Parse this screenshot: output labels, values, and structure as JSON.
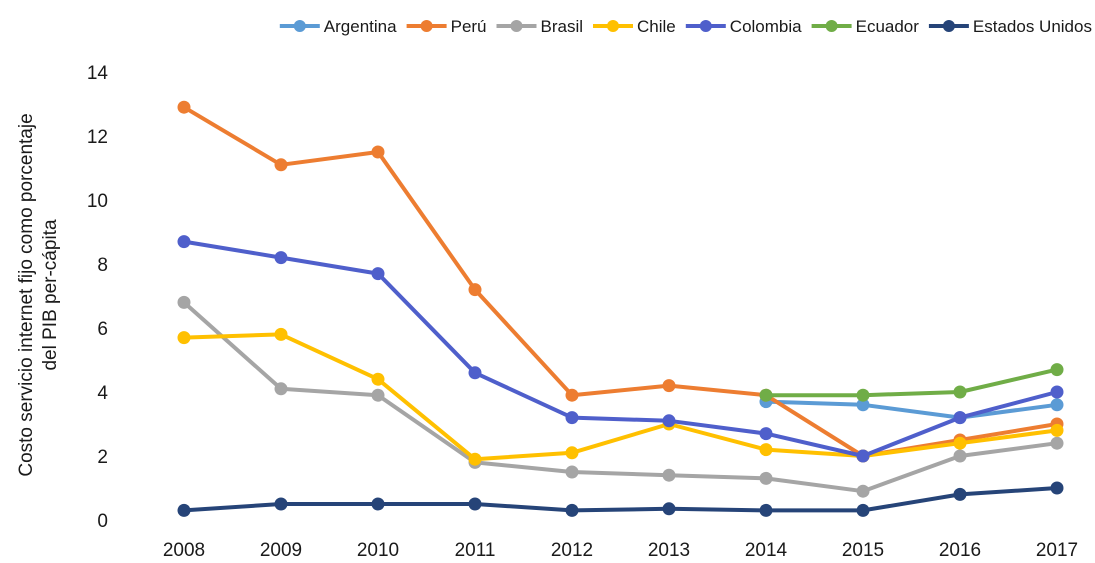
{
  "chart_data": {
    "type": "line",
    "title": "",
    "xlabel": "",
    "ylabel": [
      "Costo servicio internet fijo como porcentaje",
      "del PIB per-cápita"
    ],
    "ylim": [
      0,
      14
    ],
    "yticks": [
      0,
      2,
      4,
      6,
      8,
      10,
      12,
      14
    ],
    "grid": "none",
    "legend_position": "top",
    "categories": [
      "2008",
      "2009",
      "2010",
      "2011",
      "2012",
      "2013",
      "2014",
      "2015",
      "2016",
      "2017"
    ],
    "series": [
      {
        "name": "Argentina",
        "color": "#5B9BD5",
        "values": [
          null,
          null,
          null,
          null,
          null,
          null,
          3.7,
          3.6,
          3.2,
          3.6
        ]
      },
      {
        "name": "Perú",
        "color": "#ED7D31",
        "values": [
          12.9,
          11.1,
          11.5,
          7.2,
          3.9,
          4.2,
          3.9,
          2.0,
          2.5,
          3.0
        ]
      },
      {
        "name": "Brasil",
        "color": "#A5A5A5",
        "values": [
          6.8,
          4.1,
          3.9,
          1.8,
          1.5,
          1.4,
          1.3,
          0.9,
          2.0,
          2.4
        ]
      },
      {
        "name": "Chile",
        "color": "#FFC000",
        "values": [
          5.7,
          5.8,
          4.4,
          1.9,
          2.1,
          3.0,
          2.2,
          2.0,
          2.4,
          2.8
        ]
      },
      {
        "name": "Colombia",
        "color": "#4F5FCB",
        "values": [
          8.7,
          8.2,
          7.7,
          4.6,
          3.2,
          3.1,
          2.7,
          2.0,
          3.2,
          4.0
        ]
      },
      {
        "name": "Ecuador",
        "color": "#70AD47",
        "values": [
          null,
          null,
          null,
          null,
          null,
          null,
          3.9,
          3.9,
          4.0,
          4.7
        ]
      },
      {
        "name": "Estados Unidos",
        "color": "#264478",
        "values": [
          0.3,
          0.5,
          0.5,
          0.5,
          0.3,
          0.35,
          0.3,
          0.3,
          0.8,
          1.0
        ]
      }
    ]
  }
}
